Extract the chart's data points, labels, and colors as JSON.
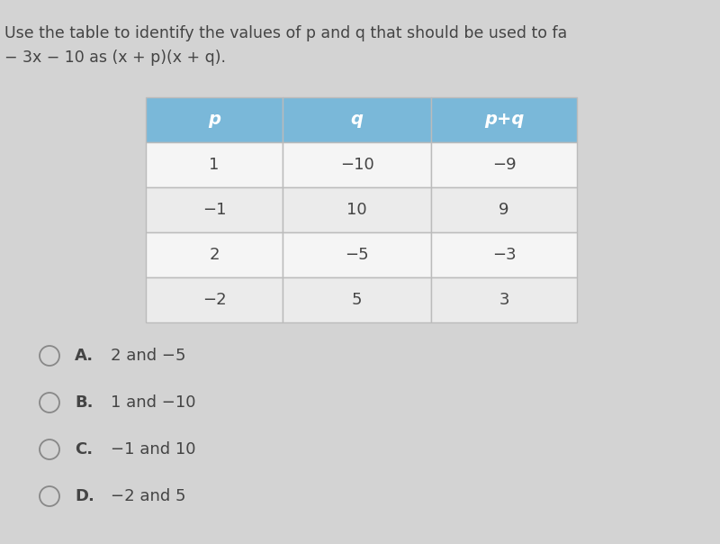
{
  "title_line1": "Use the table to identify the values of p and q that should be used to fa",
  "title_line2": "− 3x − 10 as (x + p)(x + q).",
  "table_headers": [
    "p",
    "q",
    "p+q"
  ],
  "table_data": [
    [
      "1",
      "−10",
      "−9"
    ],
    [
      "−1",
      "10",
      "9"
    ],
    [
      "2",
      "−5",
      "−3"
    ],
    [
      "−2",
      "5",
      "3"
    ]
  ],
  "header_bg": "#7ab8d9",
  "header_text_color": "#ffffff",
  "row_bg_even": "#f5f5f5",
  "row_bg_odd": "#ebebeb",
  "table_border_color": "#bbbbbb",
  "choices_letter": [
    "A.",
    "B.",
    "C.",
    "D."
  ],
  "choices_text": [
    "2 and −5",
    "1 and −10",
    "−1 and 10",
    "−2 and 5"
  ],
  "bg_color": "#d3d3d3",
  "text_color": "#444444",
  "title_fontsize": 12.5,
  "choice_fontsize": 13,
  "table_fontsize": 13,
  "table_header_fontsize": 14
}
